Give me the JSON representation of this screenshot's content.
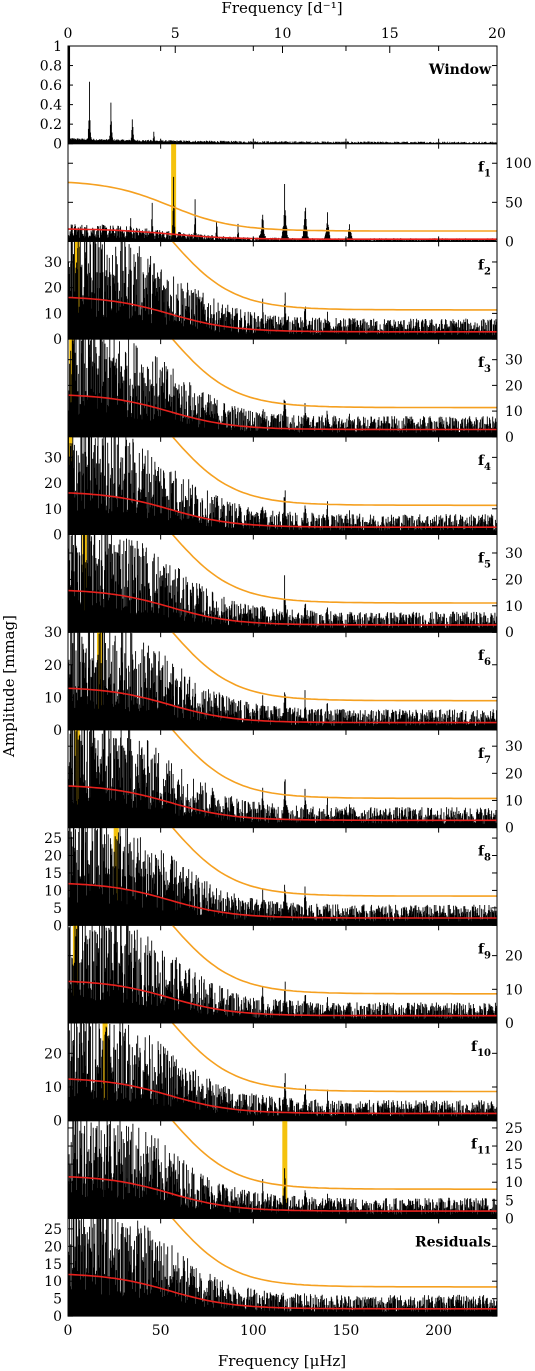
{
  "chart_data": {
    "type": "line",
    "top_xlabel": "Frequency [d⁻¹]",
    "bottom_xlabel": "Frequency [μHz]",
    "ylabel": "Amplitude [mmag]",
    "top_xticks": [
      "0",
      "5",
      "10",
      "15",
      "20"
    ],
    "top_xtick_values": [
      0,
      5,
      10,
      15,
      20
    ],
    "bottom_xticks": [
      "0",
      "50",
      "100",
      "150",
      "200"
    ],
    "bottom_xtick_values": [
      0,
      50,
      100,
      150,
      200
    ],
    "xlim_uHz": [
      0,
      231.5
    ],
    "xlim_per_day": [
      0,
      20
    ],
    "colors": {
      "spectrum": "#000000",
      "noise_line": "#e8201c",
      "threshold_line": "#f5a020",
      "highlight": "#f4c20d"
    },
    "panels": [
      {
        "label": "Window",
        "label_sub": "",
        "ylim": [
          0,
          1
        ],
        "yticks": [
          "0",
          "0.2",
          "0.4",
          "0.6",
          "0.8",
          "1"
        ],
        "ytick_values": [
          0,
          0.2,
          0.4,
          0.6,
          0.8,
          1
        ],
        "yaxis_side": "left",
        "highlight_uHz": null
      },
      {
        "label": "f",
        "label_sub": "1",
        "ylim": [
          0,
          125
        ],
        "yticks": [
          "0",
          "50",
          "100"
        ],
        "ytick_values": [
          0,
          50,
          100
        ],
        "yaxis_side": "right",
        "highlight_uHz": 57
      },
      {
        "label": "f",
        "label_sub": "2",
        "ylim": [
          0,
          38
        ],
        "yticks": [
          "0",
          "10",
          "20",
          "30"
        ],
        "ytick_values": [
          0,
          10,
          20,
          30
        ],
        "yaxis_side": "left",
        "highlight_uHz": 5
      },
      {
        "label": "f",
        "label_sub": "3",
        "ylim": [
          0,
          38
        ],
        "yticks": [
          "0",
          "10",
          "20",
          "30"
        ],
        "ytick_values": [
          0,
          10,
          20,
          30
        ],
        "yaxis_side": "right",
        "highlight_uHz": 2
      },
      {
        "label": "f",
        "label_sub": "4",
        "ylim": [
          0,
          38
        ],
        "yticks": [
          "0",
          "10",
          "20",
          "30"
        ],
        "ytick_values": [
          0,
          10,
          20,
          30
        ],
        "yaxis_side": "left",
        "highlight_uHz": 1
      },
      {
        "label": "f",
        "label_sub": "5",
        "ylim": [
          0,
          37
        ],
        "yticks": [
          "0",
          "10",
          "20",
          "30"
        ],
        "ytick_values": [
          0,
          10,
          20,
          30
        ],
        "yaxis_side": "right",
        "highlight_uHz": 9
      },
      {
        "label": "f",
        "label_sub": "6",
        "ylim": [
          0,
          30
        ],
        "yticks": [
          "0",
          "10",
          "20",
          "30"
        ],
        "ytick_values": [
          0,
          10,
          20,
          30
        ],
        "yaxis_side": "left",
        "highlight_uHz": 17
      },
      {
        "label": "f",
        "label_sub": "7",
        "ylim": [
          0,
          36
        ],
        "yticks": [
          "0",
          "10",
          "20",
          "30"
        ],
        "ytick_values": [
          0,
          10,
          20,
          30
        ],
        "yaxis_side": "right",
        "highlight_uHz": 5
      },
      {
        "label": "f",
        "label_sub": "8",
        "ylim": [
          0,
          28
        ],
        "yticks": [
          "0",
          "5",
          "10",
          "15",
          "20",
          "25"
        ],
        "ytick_values": [
          0,
          5,
          10,
          15,
          20,
          25
        ],
        "yaxis_side": "left",
        "highlight_uHz": 26
      },
      {
        "label": "f",
        "label_sub": "9",
        "ylim": [
          0,
          29
        ],
        "yticks": [
          "0",
          "10",
          "20"
        ],
        "ytick_values": [
          0,
          10,
          20
        ],
        "yaxis_side": "right",
        "highlight_uHz": 4
      },
      {
        "label": "f",
        "label_sub": "10",
        "ylim": [
          0,
          29
        ],
        "yticks": [
          "0",
          "10",
          "20"
        ],
        "ytick_values": [
          0,
          10,
          20
        ],
        "yaxis_side": "left",
        "highlight_uHz": 20
      },
      {
        "label": "f",
        "label_sub": "11",
        "ylim": [
          0,
          27
        ],
        "yticks": [
          "0",
          "5",
          "10",
          "15",
          "20",
          "25"
        ],
        "ytick_values": [
          0,
          5,
          10,
          15,
          20,
          25
        ],
        "yaxis_side": "right",
        "highlight_uHz": 117
      },
      {
        "label": "Residuals",
        "label_sub": "",
        "ylim": [
          0,
          28
        ],
        "yticks": [
          "0",
          "5",
          "10",
          "15",
          "20",
          "25"
        ],
        "ytick_values": [
          0,
          5,
          10,
          15,
          20,
          25
        ],
        "yaxis_side": "left",
        "highlight_uHz": null
      }
    ]
  }
}
